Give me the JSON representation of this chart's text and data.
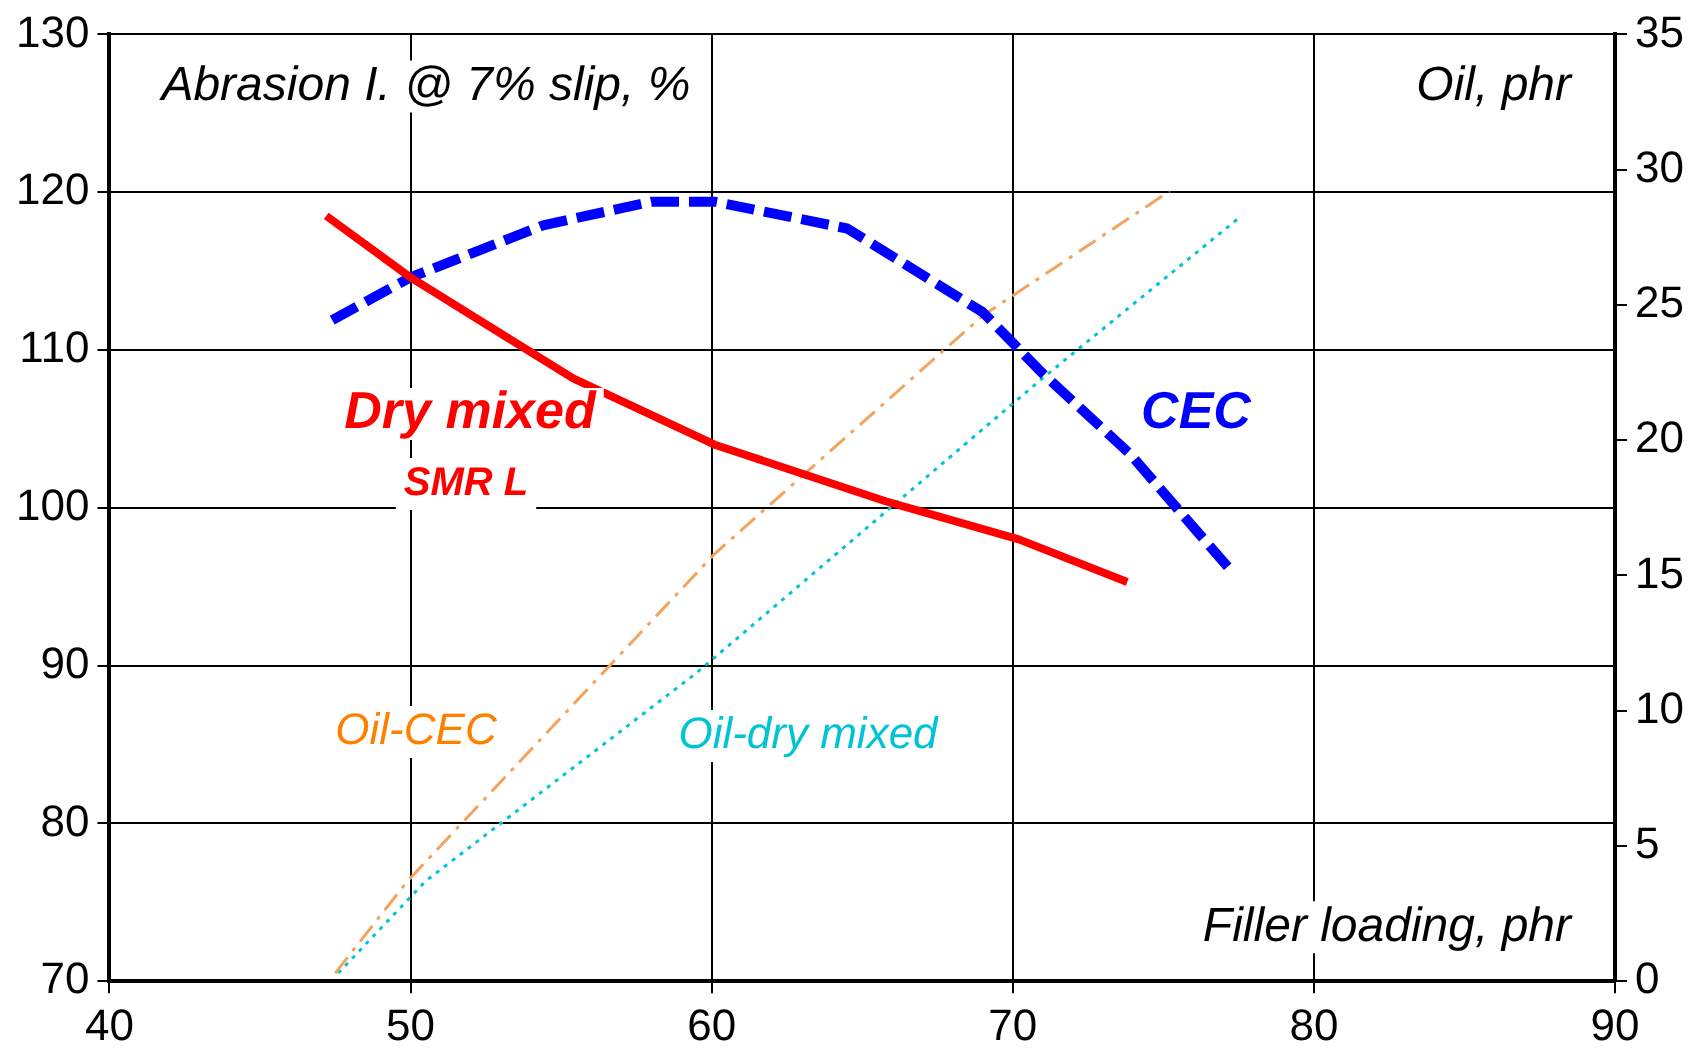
{
  "chart_data": {
    "type": "line",
    "ylabel": "Abrasion I. @ 7% slip, %",
    "y2label": "Oil, phr",
    "xlabel": "Filler loading, phr",
    "annotations": [
      "SMR L"
    ],
    "xlim": [
      40,
      90
    ],
    "xticks": [
      40,
      50,
      60,
      70,
      80,
      90
    ],
    "ylim": [
      70,
      130
    ],
    "yticks": [
      70,
      80,
      90,
      100,
      110,
      120,
      130
    ],
    "y2lim": [
      0,
      35
    ],
    "y2ticks": [
      0,
      5,
      10,
      15,
      20,
      25,
      30,
      35
    ],
    "grid": true,
    "legend": false,
    "marker": "none",
    "series": [
      {
        "name": "Dry mixed",
        "color": "#ff0000",
        "line_style": "solid",
        "x": [
          47.2,
          50,
          55.4,
          60.1,
          65.8,
          70.2,
          73.8
        ],
        "values": [
          118.5,
          114.6,
          108.2,
          104,
          100.4,
          98,
          95.3
        ]
      },
      {
        "name": "CEC",
        "color": "#0000ff",
        "line_style": "dashed",
        "x": [
          47.4,
          50,
          54.4,
          58,
          60.1,
          64.5,
          69,
          71,
          73.9,
          77.3
        ],
        "values": [
          111.9,
          114.6,
          117.9,
          119.4,
          119.4,
          117.7,
          112.4,
          108.5,
          103.4,
          95.9
        ]
      },
      {
        "name": "Oil-CEC",
        "color": "#f5a35c",
        "line_style": "dashdot",
        "axis": "y2",
        "x": [
          47.5,
          49.9,
          60.1,
          69,
          75.2
        ],
        "values": [
          0.3,
          3.7,
          15.8,
          24.6,
          29.2
        ]
      },
      {
        "name": "Oil-dry mixed",
        "color": "#00c4d4",
        "line_style": "dotted",
        "axis": "y2",
        "x": [
          47.6,
          50.5,
          59.5,
          71,
          77.6
        ],
        "values": [
          0.3,
          3.7,
          11.4,
          22.3,
          28.3
        ]
      }
    ]
  }
}
